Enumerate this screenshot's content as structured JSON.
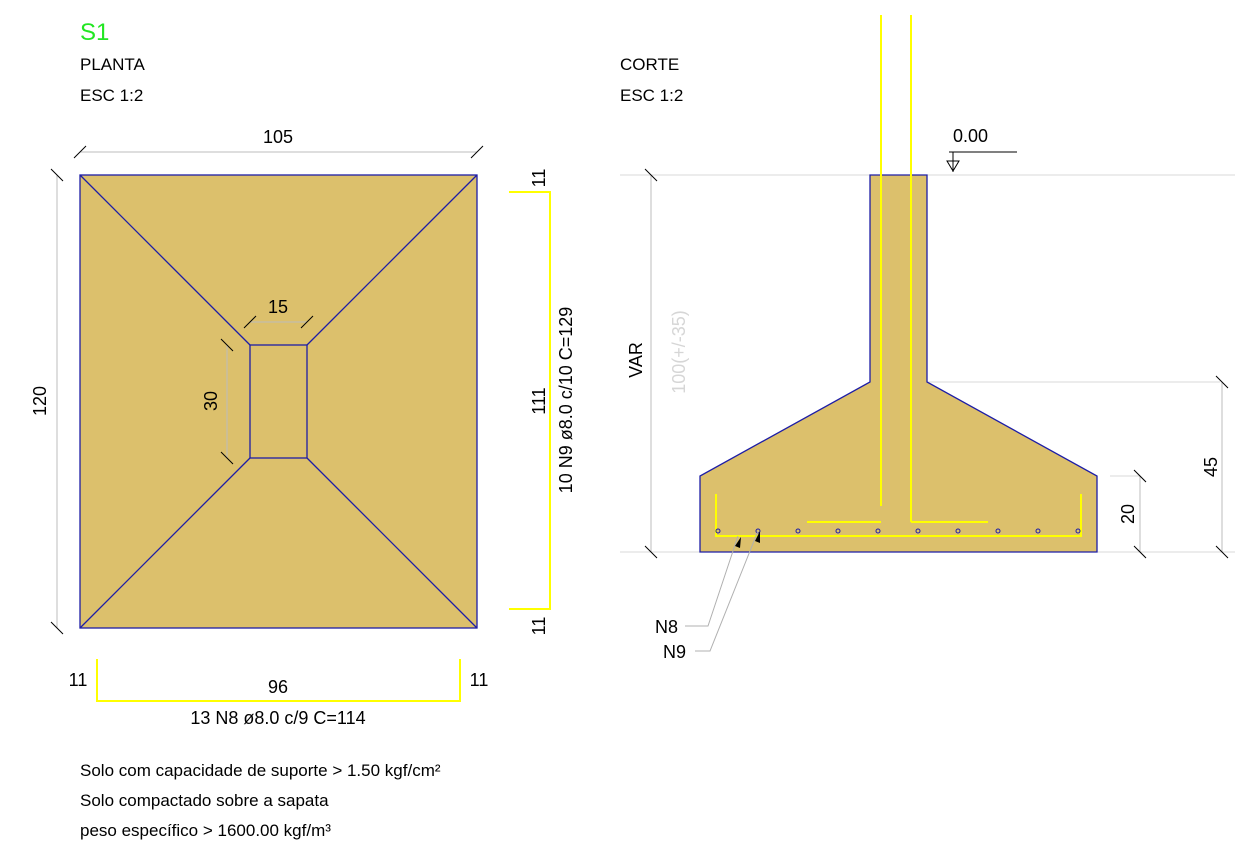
{
  "header": {
    "title": "S1",
    "title_color": "#22e622"
  },
  "plan": {
    "label": "PLANTA",
    "scale": "ESC 1:2",
    "dim_width": "105",
    "dim_height": "120",
    "dim_pillar_width": "15",
    "dim_pillar_height": "30",
    "bar_right_top": "11",
    "bar_right_mid": "111",
    "bar_right_spec": "10 N9 ø8.0 c/10  C=129",
    "bar_right_bottom": "11",
    "bar_bottom_left": "11",
    "bar_bottom_mid": "96",
    "bar_bottom_right": "11",
    "bar_bottom_spec": "13 N8 ø8.0 c/9  C=114"
  },
  "section": {
    "label": "CORTE",
    "scale": "ESC 1:2",
    "level": "0.00",
    "var_label": "VAR",
    "var_value": "100(+/-35)",
    "dim_total": "45",
    "dim_base": "20",
    "leader_n8": "N8",
    "leader_n9": "N9"
  },
  "notes": [
    "Solo com capacidade de suporte > 1.50 kgf/cm²",
    "Solo compactado sobre a sapata",
    "peso específico > 1600.00 kgf/m³"
  ],
  "colors": {
    "concrete": "#dcc06c",
    "outline": "#1d1da6",
    "rebar": "#ffff00",
    "title": "#22e622"
  }
}
